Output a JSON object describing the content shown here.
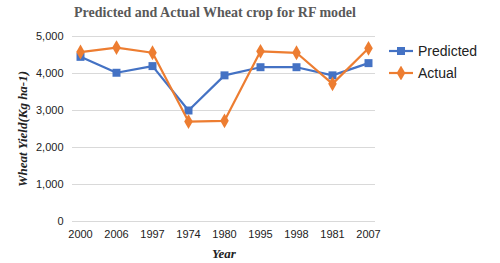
{
  "chart_data": {
    "type": "line",
    "title": "Predicted and Actual Wheat crop  for RF model",
    "x_label": "Year",
    "y_label": "Wheat Yield(Kg ha-1)",
    "categories": [
      "2000",
      "2006",
      "1997",
      "1974",
      "1980",
      "1995",
      "1998",
      "1981",
      "2007"
    ],
    "series": [
      {
        "name": "Predicted",
        "color": "#4472c4",
        "marker": "square",
        "values": [
          4450,
          4020,
          4200,
          3000,
          3950,
          4170,
          4170,
          3950,
          4280
        ]
      },
      {
        "name": "Actual",
        "color": "#ed7d31",
        "marker": "diamond",
        "values": [
          4580,
          4700,
          4560,
          2700,
          2720,
          4600,
          4560,
          3720,
          4680
        ]
      }
    ],
    "ylim": [
      0,
      5000
    ],
    "yticks": [
      0,
      1000,
      2000,
      3000,
      4000,
      5000
    ],
    "grid": true,
    "legend": "right"
  }
}
